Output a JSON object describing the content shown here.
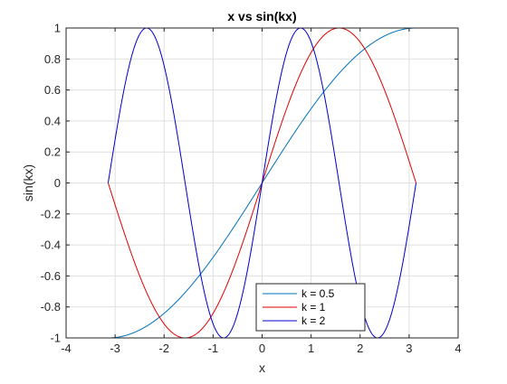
{
  "chart_data": {
    "type": "line",
    "title": "x vs sin(kx)",
    "xlabel": "x",
    "ylabel": "sin(kx)",
    "xlim": [
      -4,
      4
    ],
    "ylim": [
      -1,
      1
    ],
    "xticks": [
      -4,
      -3,
      -2,
      -1,
      0,
      1,
      2,
      3,
      4
    ],
    "yticks": [
      -1,
      -0.8,
      -0.6,
      -0.4,
      -0.2,
      0,
      0.2,
      0.4,
      0.6,
      0.8,
      1
    ],
    "grid": true,
    "legend_position": "bottom-center",
    "x_domain": [
      -3.14159,
      3.14159
    ],
    "series": [
      {
        "name": "k = 0.5",
        "k": 0.5,
        "color": "#0072BD"
      },
      {
        "name": "k = 1",
        "k": 1,
        "color": "#E00000"
      },
      {
        "name": "k = 2",
        "k": 2,
        "color": "#0000CC"
      }
    ],
    "colors": {
      "grid": "#dfdfdf",
      "axis": "#262626"
    }
  }
}
